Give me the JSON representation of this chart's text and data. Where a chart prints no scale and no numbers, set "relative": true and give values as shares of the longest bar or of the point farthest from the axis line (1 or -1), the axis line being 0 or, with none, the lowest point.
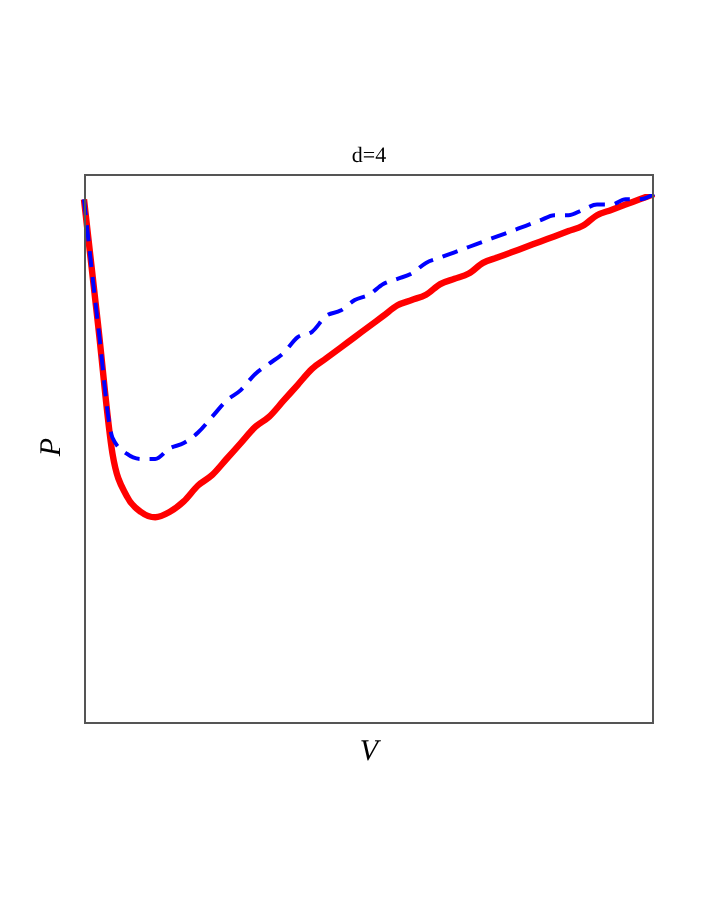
{
  "chart_data": {
    "type": "line",
    "title": "d=4",
    "xlabel": "V",
    "ylabel": "P",
    "relative": true,
    "categories": [
      null,
      null,
      null,
      null,
      null,
      null,
      null,
      null,
      null,
      null,
      null,
      null,
      null,
      null,
      null,
      null,
      null,
      null,
      null,
      null,
      null,
      null,
      null,
      null,
      null,
      null,
      null,
      null,
      null,
      null,
      null,
      null,
      null,
      null,
      null,
      null,
      null,
      null,
      null,
      null,
      null
    ],
    "series": [
      {
        "color": "#ff0000",
        "line_style": "solid",
        "values": [
          0.99,
          0.75,
          0.51,
          0.43,
          0.4,
          0.39,
          0.4,
          0.42,
          0.45,
          0.47,
          0.5,
          0.53,
          0.56,
          0.58,
          0.61,
          0.64,
          0.67,
          0.69,
          0.71,
          0.73,
          0.75,
          0.77,
          0.79,
          0.8,
          0.81,
          0.83,
          0.84,
          0.85,
          0.87,
          0.88,
          0.89,
          0.9,
          0.91,
          0.92,
          0.93,
          0.94,
          0.96,
          0.97,
          0.98,
          0.99,
          1.0
        ]
      },
      {
        "color": "#0000ff",
        "line_style": "dashed",
        "values": [
          0.99,
          0.75,
          0.54,
          0.51,
          0.5,
          0.5,
          0.52,
          0.53,
          0.55,
          0.58,
          0.61,
          0.63,
          0.66,
          0.68,
          0.7,
          0.73,
          0.74,
          0.77,
          0.78,
          0.8,
          0.81,
          0.83,
          0.84,
          0.85,
          0.87,
          0.88,
          0.89,
          0.9,
          0.91,
          0.92,
          0.93,
          0.94,
          0.95,
          0.96,
          0.96,
          0.97,
          0.98,
          0.98,
          0.99,
          0.99,
          1.0
        ]
      }
    ]
  }
}
